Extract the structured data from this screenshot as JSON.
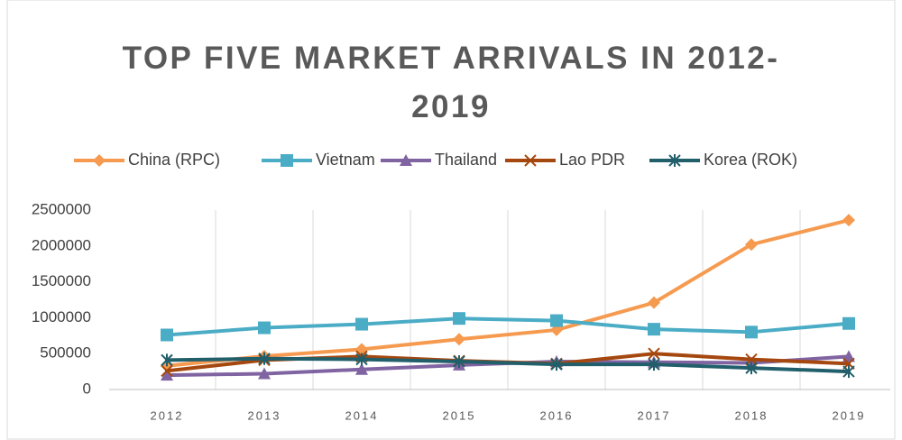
{
  "chart_data": {
    "type": "line",
    "title": "TOP FIVE MARKET ARRIVALS IN 2012-2019",
    "categories": [
      "2012",
      "2013",
      "2014",
      "2015",
      "2016",
      "2017",
      "2018",
      "2019"
    ],
    "series": [
      {
        "name": "China (RPC)",
        "color": "#f59a4f",
        "marker": "diamond",
        "values": [
          330000,
          465000,
          560000,
          700000,
          830000,
          1210000,
          2020000,
          2360000
        ]
      },
      {
        "name": "Vietnam",
        "color": "#4bacc6",
        "marker": "square",
        "values": [
          760000,
          860000,
          910000,
          990000,
          960000,
          840000,
          800000,
          920000
        ]
      },
      {
        "name": "Thailand",
        "color": "#8064a2",
        "marker": "triangle",
        "values": [
          200000,
          220000,
          280000,
          340000,
          390000,
          380000,
          370000,
          460000
        ]
      },
      {
        "name": "Lao PDR",
        "color": "#a5480f",
        "marker": "x",
        "values": [
          260000,
          410000,
          460000,
          400000,
          360000,
          500000,
          420000,
          360000
        ]
      },
      {
        "name": "Korea (ROK)",
        "color": "#215f6b",
        "marker": "star",
        "values": [
          410000,
          430000,
          420000,
          390000,
          350000,
          350000,
          300000,
          250000
        ]
      }
    ],
    "ylim": [
      0,
      2500000
    ],
    "yticks": [
      0,
      500000,
      1000000,
      1500000,
      2000000,
      2500000
    ],
    "grid": true
  }
}
